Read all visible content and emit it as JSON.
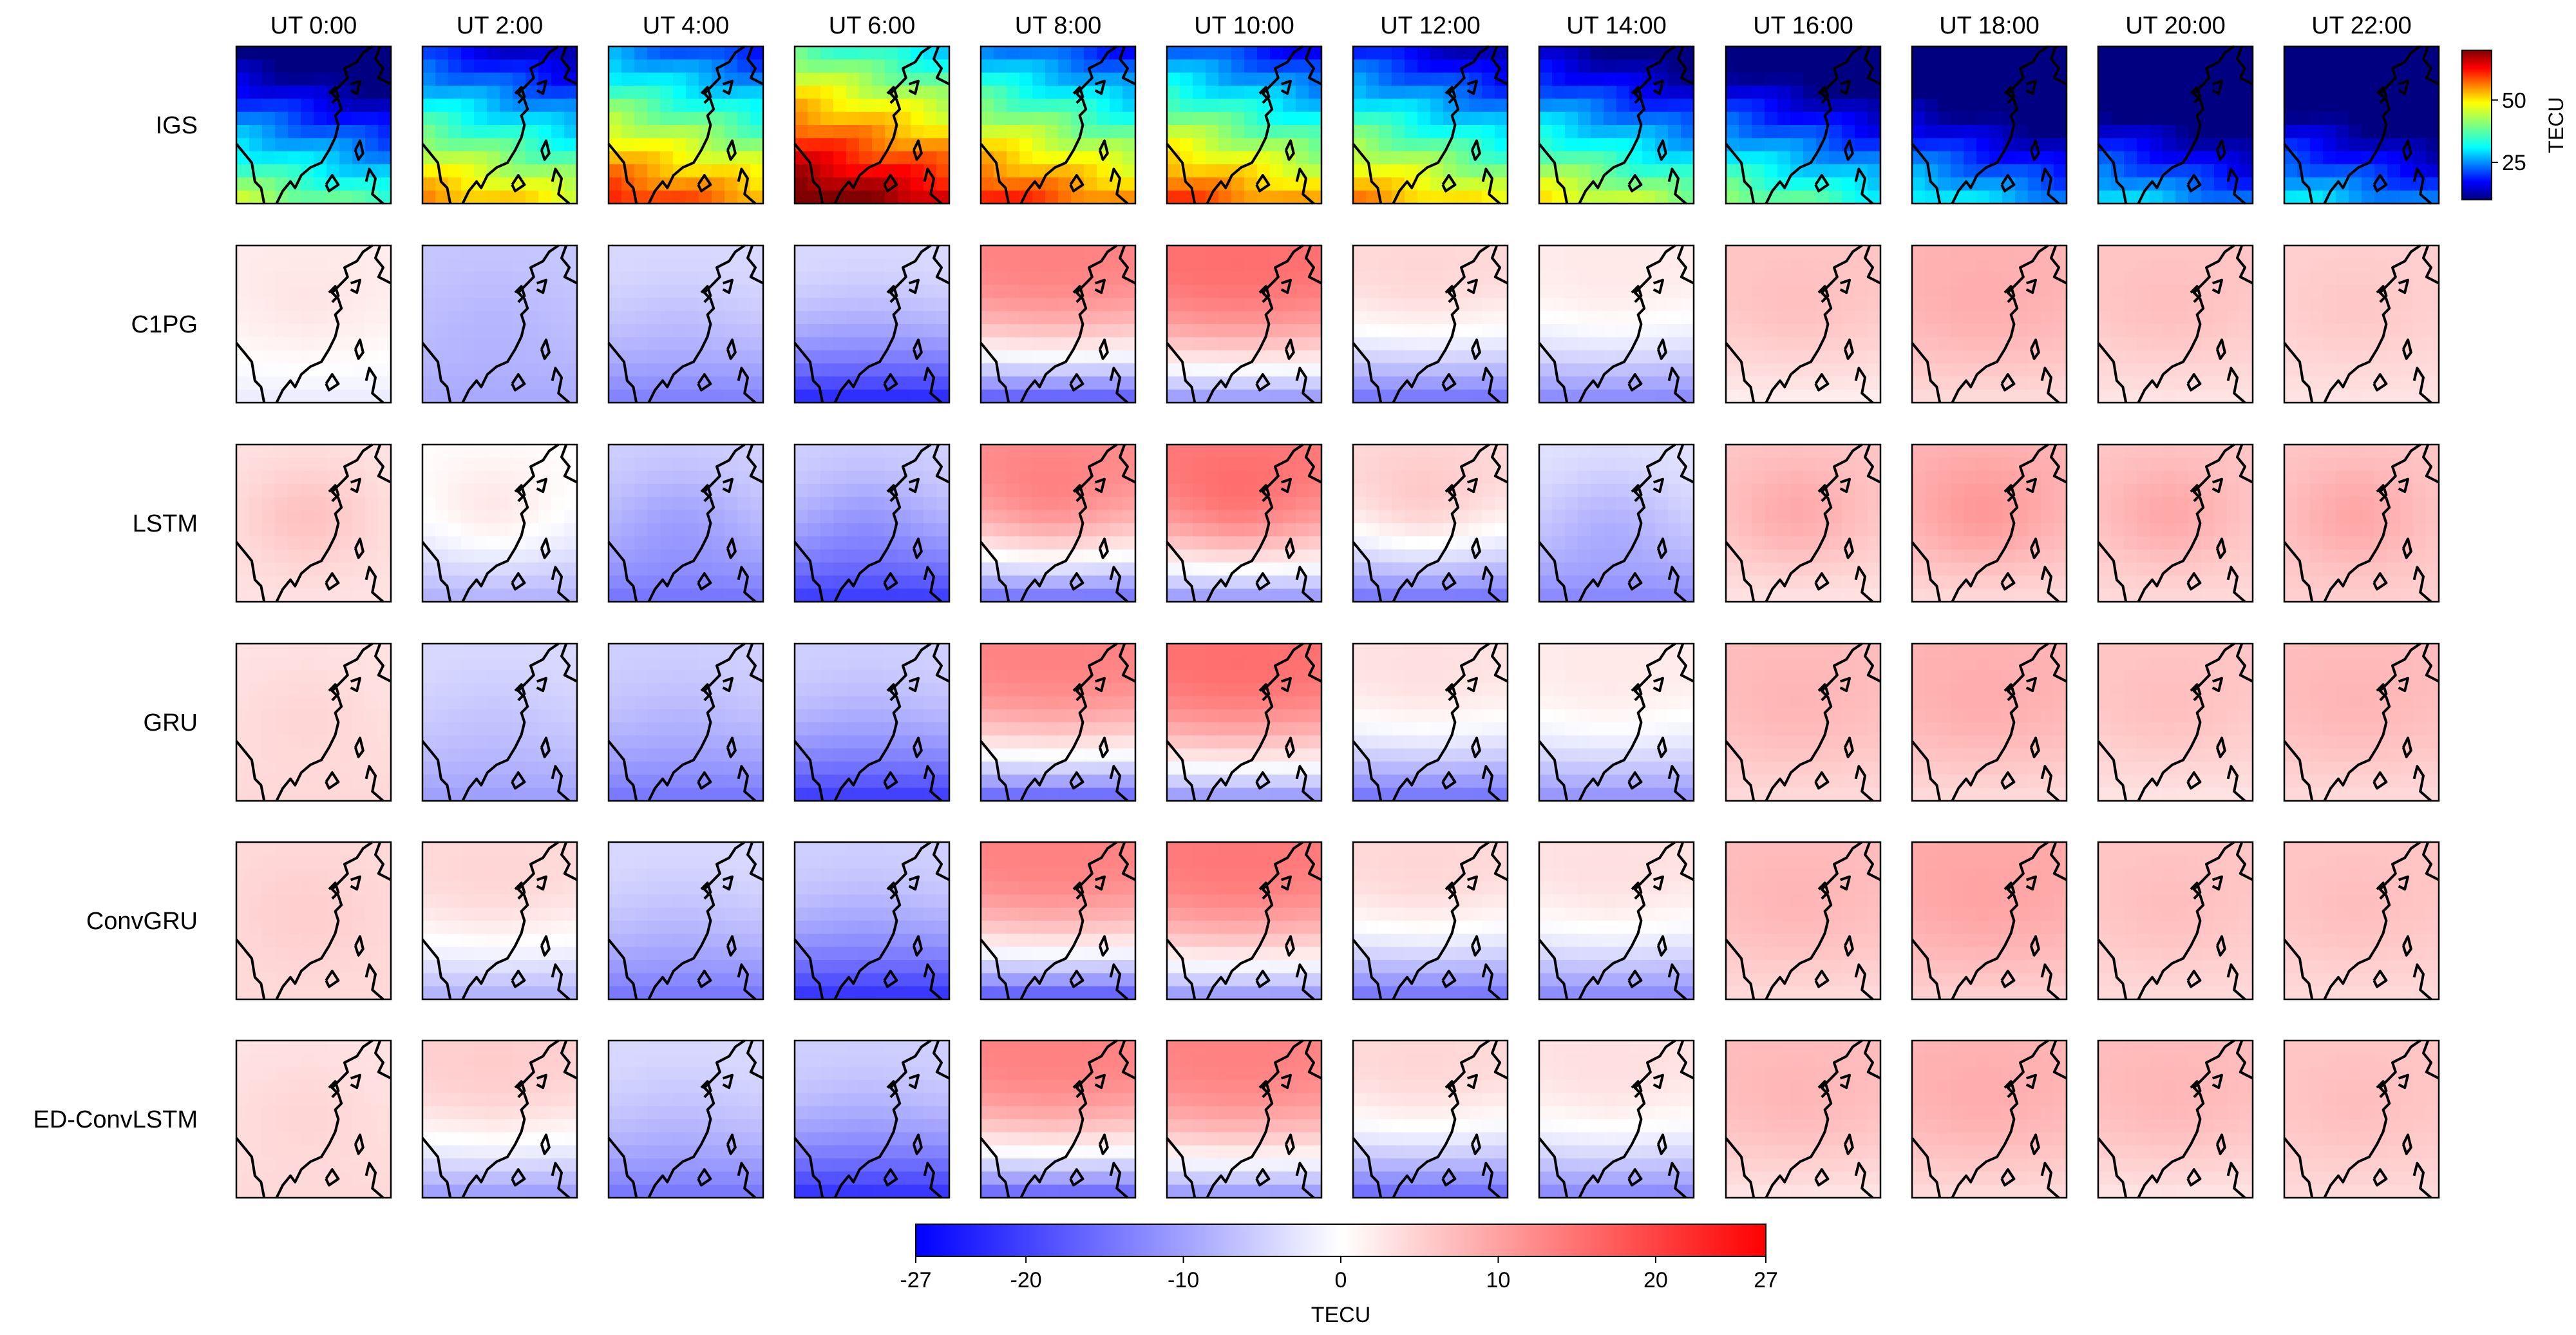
{
  "chart_data": {
    "type": "heatmap",
    "title": "",
    "columns": [
      "UT 0:00",
      "UT 2:00",
      "UT 4:00",
      "UT 6:00",
      "UT 8:00",
      "UT 10:00",
      "UT 12:00",
      "UT 14:00",
      "UT 16:00",
      "UT 18:00",
      "UT 20:00",
      "UT 22:00"
    ],
    "rows": [
      "IGS",
      "C1PG",
      "LSTM",
      "GRU",
      "ConvGRU",
      "ED-ConvLSTM"
    ],
    "tec_colorbar": {
      "label": "TECU",
      "range": [
        10,
        70
      ],
      "ticks": [
        25,
        50
      ],
      "tick_labels": [
        "25",
        "50"
      ],
      "colormap": "jet"
    },
    "diff_colorbar": {
      "label": "TECU",
      "range": [
        -27,
        27
      ],
      "ticks": [
        -27,
        -20,
        -10,
        0,
        10,
        20,
        27
      ],
      "tick_labels": [
        "-27",
        "-20",
        "-10",
        "0",
        "10",
        "20",
        "27"
      ],
      "colormap": "bwr"
    },
    "grid_size": 12,
    "approx_values": {
      "IGS_mean_tec": [
        22,
        33,
        40,
        52,
        40,
        38,
        33,
        27,
        20,
        12,
        10,
        10
      ],
      "C1PG_diff_north": [
        2,
        -6,
        -4,
        -4,
        13,
        15,
        4,
        2,
        6,
        8,
        6,
        5
      ],
      "C1PG_diff_south": [
        -2,
        -9,
        -13,
        -22,
        -16,
        -10,
        -14,
        -12,
        2,
        4,
        3,
        3
      ],
      "LSTM_diff_north": [
        3,
        0,
        -5,
        -5,
        12,
        14,
        4,
        -3,
        6,
        8,
        6,
        6
      ],
      "LSTM_diff_south": [
        3,
        -8,
        -14,
        -20,
        -14,
        -10,
        -14,
        -12,
        3,
        4,
        4,
        5
      ],
      "GRU_diff_north": [
        3,
        -4,
        -5,
        -5,
        13,
        15,
        3,
        2,
        7,
        8,
        6,
        7
      ],
      "GRU_diff_south": [
        4,
        -10,
        -14,
        -20,
        -15,
        -10,
        -14,
        -11,
        4,
        4,
        3,
        4
      ],
      "ConvGRU_diff_north": [
        4,
        4,
        -4,
        -5,
        13,
        14,
        4,
        3,
        7,
        9,
        6,
        6
      ],
      "ConvGRU_diff_south": [
        4,
        -8,
        -14,
        -21,
        -16,
        -10,
        -14,
        -12,
        4,
        5,
        4,
        4
      ],
      "EDConvLSTM_diff_north": [
        3,
        5,
        -4,
        -5,
        13,
        13,
        4,
        3,
        7,
        8,
        7,
        6
      ],
      "EDConvLSTM_diff_south": [
        4,
        -10,
        -14,
        -21,
        -15,
        -10,
        -15,
        -12,
        3,
        4,
        3,
        4
      ]
    }
  }
}
